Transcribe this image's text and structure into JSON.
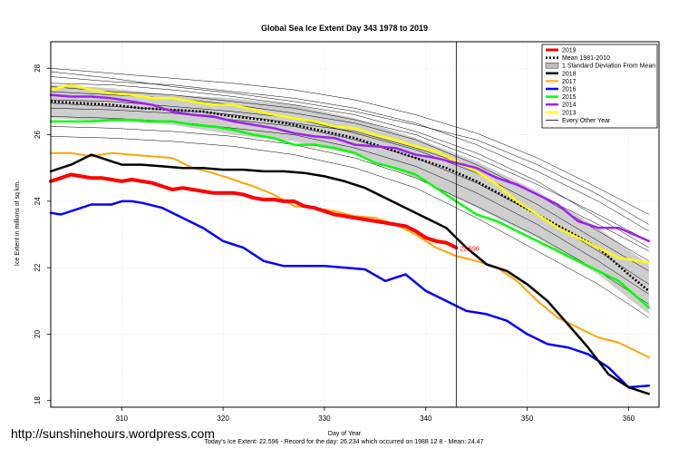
{
  "chart_data": {
    "type": "line",
    "title": "Global Sea Ice Extent Day 343 1978 to 2019",
    "xlabel": "Day of Year",
    "ylabel": "Ice Extent in millions of sq km.",
    "xlim": [
      303,
      363
    ],
    "ylim": [
      17.8,
      28.8
    ],
    "xticks": [
      310,
      320,
      330,
      340,
      350,
      360
    ],
    "yticks": [
      18,
      20,
      22,
      24,
      26,
      28
    ],
    "grid": true,
    "legend_position": "top-right",
    "current_day": 343,
    "annotation": {
      "text": "22.596",
      "x": 343,
      "y": 22.596,
      "color": "#ff0000"
    },
    "series": [
      {
        "name": "2019",
        "color": "#ff0000",
        "style": "solid",
        "width": 4,
        "x": [
          303,
          304,
          305,
          306,
          307,
          308,
          309,
          310,
          311,
          312,
          313,
          314,
          315,
          316,
          317,
          318,
          319,
          320,
          321,
          322,
          323,
          324,
          325,
          326,
          327,
          328,
          329,
          330,
          331,
          332,
          333,
          334,
          335,
          336,
          337,
          338,
          339,
          340,
          341,
          342,
          343
        ],
        "y": [
          24.6,
          24.7,
          24.8,
          24.75,
          24.7,
          24.7,
          24.65,
          24.6,
          24.65,
          24.6,
          24.55,
          24.45,
          24.35,
          24.4,
          24.35,
          24.3,
          24.25,
          24.25,
          24.25,
          24.2,
          24.1,
          24.05,
          24.05,
          24.0,
          24.0,
          23.85,
          23.8,
          23.7,
          23.6,
          23.55,
          23.5,
          23.45,
          23.4,
          23.35,
          23.3,
          23.25,
          23.1,
          22.9,
          22.8,
          22.75,
          22.6
        ]
      },
      {
        "name": "Mean 1981-2010",
        "color": "#000000",
        "style": "dotted",
        "width": 2.5,
        "x": [
          303,
          306,
          309,
          312,
          315,
          318,
          321,
          324,
          327,
          330,
          333,
          336,
          339,
          342,
          345,
          348,
          351,
          354,
          357,
          360,
          362
        ],
        "y": [
          27.0,
          26.95,
          26.9,
          26.8,
          26.75,
          26.7,
          26.55,
          26.45,
          26.3,
          26.1,
          25.9,
          25.6,
          25.3,
          25.0,
          24.6,
          24.1,
          23.6,
          23.1,
          22.6,
          21.8,
          21.3
        ]
      },
      {
        "name": "2018",
        "color": "#000000",
        "style": "solid",
        "width": 2.5,
        "x": [
          303,
          304,
          305,
          306,
          307,
          308,
          309,
          310,
          312,
          314,
          316,
          318,
          320,
          322,
          324,
          326,
          328,
          330,
          332,
          334,
          336,
          338,
          340,
          342,
          344,
          346,
          348,
          350,
          352,
          354,
          356,
          358,
          360,
          362
        ],
        "y": [
          24.9,
          25.0,
          25.1,
          25.25,
          25.4,
          25.3,
          25.2,
          25.1,
          25.1,
          25.05,
          25.0,
          25.0,
          24.95,
          24.95,
          24.9,
          24.9,
          24.85,
          24.75,
          24.6,
          24.4,
          24.1,
          23.8,
          23.5,
          23.2,
          22.6,
          22.1,
          21.9,
          21.5,
          21.0,
          20.3,
          19.6,
          18.8,
          18.4,
          18.2
        ]
      },
      {
        "name": "2017",
        "color": "#ffa500",
        "style": "solid",
        "width": 2,
        "x": [
          303,
          305,
          307,
          309,
          311,
          313,
          315,
          317,
          319,
          321,
          323,
          325,
          327,
          329,
          331,
          333,
          335,
          337,
          339,
          341,
          343,
          345,
          347,
          349,
          351,
          353,
          355,
          357,
          359,
          362
        ],
        "y": [
          25.45,
          25.45,
          25.35,
          25.45,
          25.4,
          25.35,
          25.3,
          25.0,
          24.85,
          24.65,
          24.45,
          24.2,
          23.85,
          23.8,
          23.7,
          23.55,
          23.5,
          23.3,
          23.0,
          22.6,
          22.35,
          22.2,
          22.0,
          21.6,
          21.0,
          20.5,
          20.2,
          19.9,
          19.75,
          19.3
        ]
      },
      {
        "name": "2016",
        "color": "#0000ff",
        "style": "solid",
        "width": 2.5,
        "x": [
          303,
          304,
          305,
          306,
          307,
          308,
          309,
          310,
          311,
          312,
          314,
          316,
          318,
          320,
          322,
          324,
          326,
          328,
          330,
          332,
          334,
          336,
          338,
          340,
          342,
          344,
          346,
          348,
          350,
          352,
          354,
          356,
          358,
          360,
          362
        ],
        "y": [
          23.65,
          23.6,
          23.7,
          23.8,
          23.9,
          23.9,
          23.9,
          24.0,
          24.0,
          23.95,
          23.8,
          23.5,
          23.2,
          22.8,
          22.6,
          22.2,
          22.05,
          22.05,
          22.05,
          22.0,
          21.95,
          21.6,
          21.8,
          21.3,
          21.0,
          20.7,
          20.6,
          20.4,
          20.0,
          19.7,
          19.6,
          19.4,
          19.0,
          18.4,
          18.45
        ]
      },
      {
        "name": "2015",
        "color": "#00ff00",
        "style": "solid",
        "width": 2.5,
        "x": [
          303,
          305,
          307,
          309,
          311,
          313,
          315,
          317,
          319,
          321,
          323,
          325,
          327,
          329,
          331,
          333,
          335,
          337,
          339,
          341,
          343,
          345,
          347,
          349,
          351,
          353,
          355,
          357,
          359,
          362
        ],
        "y": [
          26.4,
          26.4,
          26.4,
          26.45,
          26.45,
          26.4,
          26.4,
          26.3,
          26.25,
          26.15,
          26.0,
          25.9,
          25.7,
          25.7,
          25.6,
          25.45,
          25.15,
          25.0,
          24.8,
          24.4,
          24.0,
          23.6,
          23.4,
          23.1,
          22.8,
          22.5,
          22.2,
          21.9,
          21.6,
          20.8
        ]
      },
      {
        "name": "2014",
        "color": "#a020f0",
        "style": "solid",
        "width": 2.5,
        "x": [
          303,
          305,
          307,
          309,
          311,
          313,
          315,
          317,
          319,
          321,
          323,
          325,
          327,
          329,
          331,
          333,
          335,
          337,
          339,
          341,
          343,
          345,
          347,
          349,
          351,
          353,
          355,
          357,
          359,
          362
        ],
        "y": [
          27.2,
          27.15,
          27.15,
          27.1,
          27.0,
          26.9,
          26.7,
          26.6,
          26.55,
          26.4,
          26.3,
          26.2,
          26.05,
          25.95,
          25.9,
          25.7,
          25.65,
          25.6,
          25.4,
          25.3,
          25.15,
          25.0,
          24.7,
          24.5,
          24.2,
          23.9,
          23.4,
          23.2,
          23.2,
          22.8
        ]
      },
      {
        "name": "2013",
        "color": "#ffff00",
        "style": "solid",
        "width": 2.5,
        "x": [
          303,
          305,
          307,
          309,
          311,
          313,
          315,
          317,
          319,
          321,
          323,
          325,
          327,
          329,
          331,
          333,
          335,
          337,
          339,
          341,
          343,
          345,
          347,
          349,
          351,
          353,
          355,
          357,
          359,
          362
        ],
        "y": [
          27.35,
          27.5,
          27.35,
          27.25,
          27.2,
          27.1,
          27.1,
          27.0,
          26.9,
          26.9,
          26.75,
          26.6,
          26.5,
          26.4,
          26.25,
          26.2,
          26.0,
          25.85,
          25.65,
          25.5,
          25.2,
          24.9,
          24.5,
          24.0,
          23.6,
          23.2,
          22.9,
          22.6,
          22.3,
          22.15
        ]
      },
      {
        "name": "1 Standard Deviation From Mean",
        "color": "#bebebe",
        "style": "band",
        "x": [
          303,
          309,
          315,
          321,
          327,
          333,
          339,
          345,
          351,
          357,
          362
        ],
        "y_low": [
          26.5,
          26.4,
          26.3,
          26.0,
          25.8,
          25.4,
          24.7,
          23.8,
          22.9,
          21.8,
          20.6
        ],
        "y_high": [
          27.5,
          27.4,
          27.2,
          27.1,
          26.9,
          26.5,
          25.9,
          25.2,
          24.3,
          23.2,
          22.1
        ]
      },
      {
        "name": "Every Other Year",
        "color": "#000000",
        "style": "thin",
        "width": 0.5,
        "x": [
          303,
          309,
          315,
          321,
          327,
          333,
          339,
          345,
          351,
          357,
          362
        ],
        "lines": [
          [
            28.0,
            27.85,
            27.7,
            27.55,
            27.35,
            27.05,
            26.6,
            26.05,
            25.3,
            24.4,
            23.6
          ],
          [
            27.75,
            27.6,
            27.5,
            27.3,
            27.1,
            26.8,
            26.35,
            25.7,
            24.9,
            24.0,
            23.1
          ],
          [
            27.55,
            27.5,
            27.35,
            27.15,
            26.9,
            26.6,
            26.1,
            25.45,
            24.6,
            23.5,
            22.6
          ],
          [
            27.3,
            27.2,
            27.1,
            26.9,
            26.65,
            26.35,
            25.85,
            25.1,
            24.2,
            23.1,
            22.2
          ],
          [
            27.05,
            27.0,
            26.85,
            26.7,
            26.5,
            26.05,
            25.55,
            24.85,
            23.9,
            22.8,
            21.9
          ],
          [
            26.8,
            26.75,
            26.65,
            26.45,
            26.25,
            25.85,
            25.3,
            24.55,
            23.6,
            22.5,
            21.5
          ],
          [
            26.55,
            26.5,
            26.4,
            26.2,
            26.0,
            25.6,
            25.05,
            24.25,
            23.3,
            22.2,
            21.2
          ],
          [
            26.25,
            26.2,
            26.1,
            25.95,
            25.7,
            25.3,
            24.7,
            23.85,
            22.95,
            21.9,
            20.9
          ],
          [
            25.95,
            25.9,
            25.8,
            25.65,
            25.4,
            25.0,
            24.4,
            23.5,
            22.5,
            21.5,
            20.5
          ],
          [
            27.9,
            27.7,
            27.45,
            27.25,
            27.0,
            26.7,
            26.3,
            25.85,
            25.1,
            24.2,
            23.3
          ],
          [
            26.95,
            26.85,
            26.75,
            26.6,
            26.35,
            26.1,
            25.6,
            25.0,
            24.2,
            23.3,
            22.5
          ],
          [
            27.45,
            27.3,
            27.2,
            27.0,
            26.8,
            26.45,
            26.0,
            25.3,
            24.5,
            23.6,
            22.8
          ]
        ]
      }
    ]
  },
  "watermark": "http://sunshinehours.wordpress.com",
  "footer": "Today's Ice Extent: 22.596  - Record for the day: 26.234 which occurred on 1988 12 8  - Mean: 24.47"
}
